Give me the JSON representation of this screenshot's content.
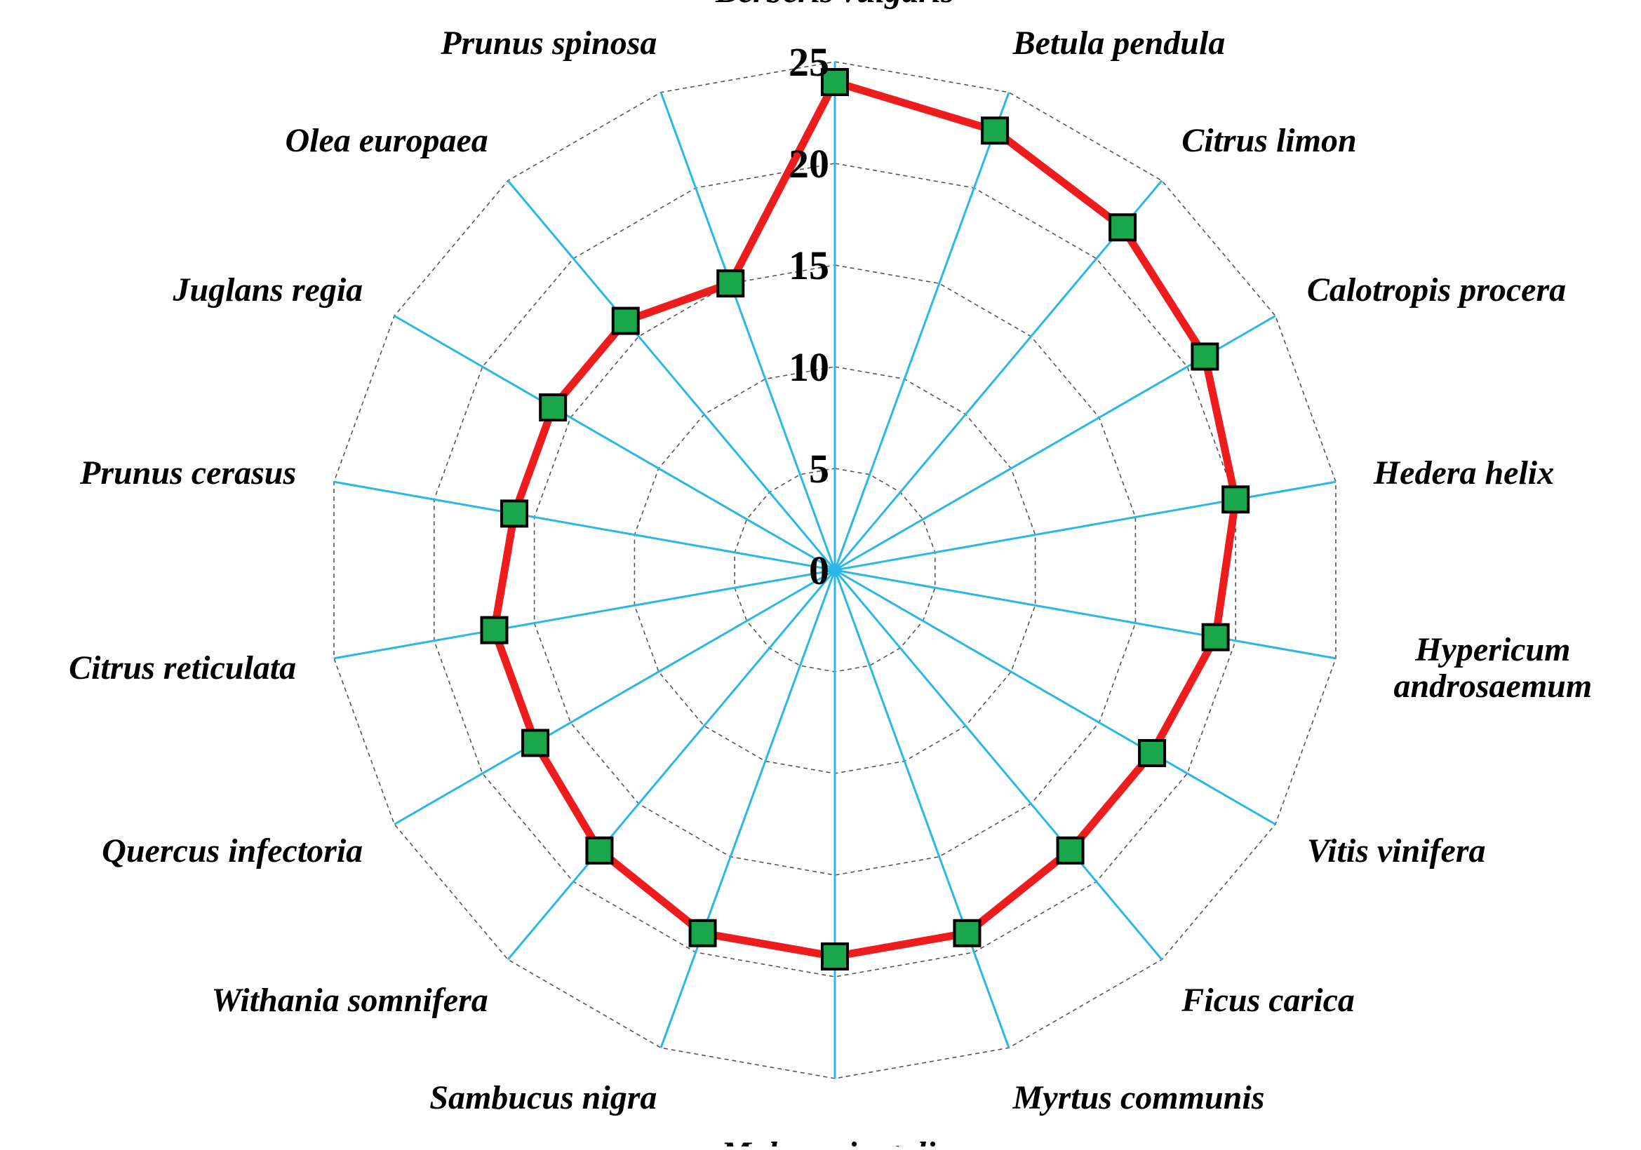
{
  "chart_data": {
    "type": "radar",
    "categories": [
      "Berberis vulgaris",
      "Betula pendula",
      "Citrus limon",
      "Calotropis procera",
      "Hedera helix",
      "Hypericum androsaemum",
      "Vitis vinifera",
      "Ficus carica",
      "Myrtus communis",
      "Malus orientalis",
      "Sambucus nigra",
      "Withania somnifera",
      "Quercus infectoria",
      "Citrus reticulata",
      "Prunus cerasus",
      "Juglans regia",
      "Olea europaea",
      "Prunus spinosa"
    ],
    "label_lines": [
      [
        "Berberis vulgaris"
      ],
      [
        "Betula pendula"
      ],
      [
        "Citrus limon"
      ],
      [
        "Calotropis procera"
      ],
      [
        "Hedera helix"
      ],
      [
        "Hypericum",
        "androsaemum"
      ],
      [
        "Vitis vinifera"
      ],
      [
        "Ficus carica"
      ],
      [
        "Myrtus communis"
      ],
      [
        "Malus orientalis"
      ],
      [
        "Sambucus nigra"
      ],
      [
        "Withania somnifera"
      ],
      [
        "Quercus infectoria"
      ],
      [
        "Citrus reticulata"
      ],
      [
        "Prunus cerasus"
      ],
      [
        "Juglans regia"
      ],
      [
        "Olea europaea"
      ],
      [
        "Prunus spinosa"
      ]
    ],
    "values": [
      24,
      23,
      22,
      21,
      20,
      19,
      18,
      18,
      19,
      19,
      19,
      18,
      17,
      17,
      16,
      16,
      16,
      15
    ],
    "r_ticks": [
      "0",
      "5",
      "10",
      "15",
      "20",
      "25"
    ],
    "r_range": [
      0,
      25
    ],
    "grid": true,
    "colors": {
      "line": "#ee1c1c",
      "marker_fill": "#1aa64a",
      "marker_stroke": "#000000",
      "spoke": "#2bb7e6",
      "grid": "#555555",
      "text": "#000000"
    }
  }
}
